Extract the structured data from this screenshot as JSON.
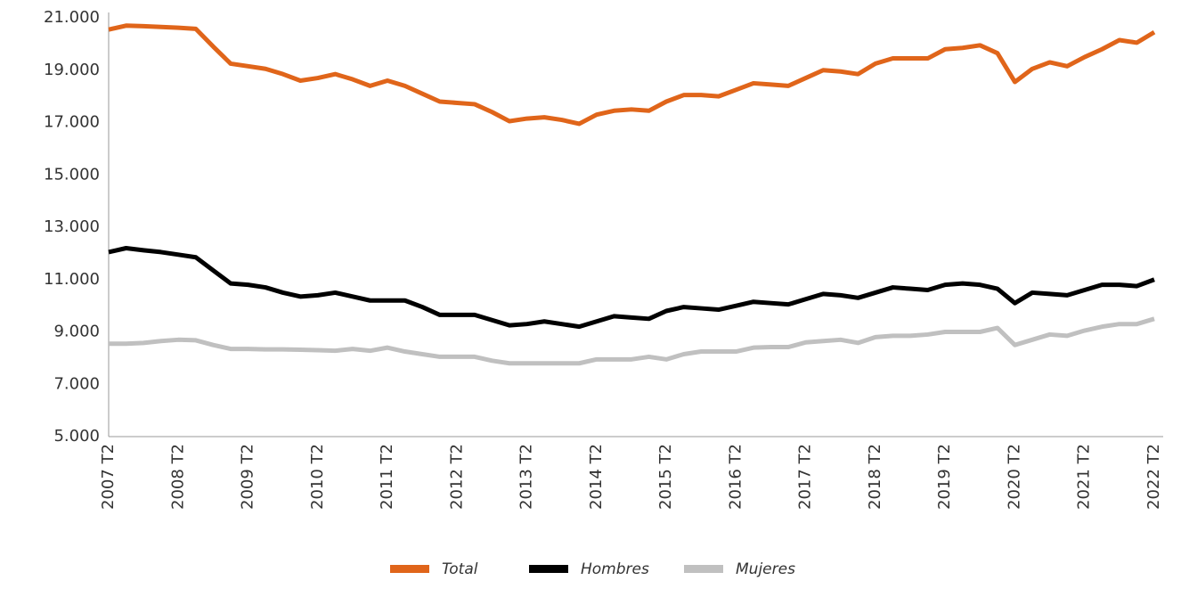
{
  "chart_data": {
    "type": "line",
    "categories": [
      "2007 T2",
      null,
      null,
      null,
      "2008 T2",
      null,
      null,
      null,
      "2009 T2",
      null,
      null,
      null,
      "2010 T2",
      null,
      null,
      null,
      "2011 T2",
      null,
      null,
      null,
      "2012 T2",
      null,
      null,
      null,
      "2013 T2",
      null,
      null,
      null,
      "2014 T2",
      null,
      null,
      null,
      "2015 T2",
      null,
      null,
      null,
      "2016 T2",
      null,
      null,
      null,
      "2017 T2",
      null,
      null,
      null,
      "2018 T2",
      null,
      null,
      null,
      "2019 T2",
      null,
      null,
      null,
      "2020 T2",
      null,
      null,
      null,
      "2021 T2",
      null,
      null,
      null,
      "2022 T2"
    ],
    "series": [
      {
        "name": "Total",
        "color": "#e0651a",
        "values": [
          20550,
          20700,
          20680,
          20650,
          20620,
          20580,
          19900,
          19250,
          19150,
          19050,
          18850,
          18600,
          18700,
          18850,
          18650,
          18400,
          18600,
          18400,
          18100,
          17800,
          17750,
          17700,
          17400,
          17050,
          17150,
          17200,
          17100,
          16950,
          17300,
          17450,
          17500,
          17450,
          17800,
          18050,
          18050,
          18000,
          18250,
          18500,
          18450,
          18400,
          18700,
          19000,
          18950,
          18850,
          19250,
          19450,
          19450,
          19450,
          19800,
          19850,
          19950,
          19650,
          18550,
          19050,
          19300,
          19150,
          19500,
          19800,
          20150,
          20050,
          20450
        ]
      },
      {
        "name": "Hombres",
        "color": "#000000",
        "values": [
          12050,
          12200,
          12120,
          12050,
          11950,
          11850,
          11350,
          10850,
          10800,
          10700,
          10500,
          10350,
          10400,
          10500,
          10350,
          10200,
          10200,
          10200,
          9950,
          9650,
          9650,
          9650,
          9450,
          9250,
          9300,
          9400,
          9300,
          9200,
          9400,
          9600,
          9550,
          9500,
          9800,
          9950,
          9900,
          9850,
          10000,
          10150,
          10100,
          10050,
          10250,
          10450,
          10400,
          10300,
          10500,
          10700,
          10650,
          10600,
          10800,
          10850,
          10800,
          10650,
          10100,
          10500,
          10450,
          10400,
          10600,
          10800,
          10800,
          10750,
          11000
        ]
      },
      {
        "name": "Mujeres",
        "color": "#c0c0c0",
        "values": [
          8550,
          8550,
          8580,
          8650,
          8700,
          8680,
          8500,
          8350,
          8350,
          8330,
          8330,
          8320,
          8300,
          8280,
          8350,
          8280,
          8400,
          8250,
          8150,
          8050,
          8050,
          8050,
          7900,
          7800,
          7800,
          7800,
          7800,
          7800,
          7950,
          7950,
          7950,
          8050,
          7950,
          8150,
          8250,
          8250,
          8250,
          8400,
          8420,
          8420,
          8600,
          8650,
          8700,
          8580,
          8800,
          8850,
          8850,
          8900,
          9000,
          9000,
          9000,
          9150,
          8500,
          8700,
          8900,
          8850,
          9050,
          9200,
          9300,
          9300,
          9500
        ]
      }
    ],
    "ylim": [
      5000,
      21000
    ],
    "yticks": [
      {
        "value": 5000,
        "label": "5.000"
      },
      {
        "value": 7000,
        "label": "7.000"
      },
      {
        "value": 9000,
        "label": "9.000"
      },
      {
        "value": 11000,
        "label": "11.000"
      },
      {
        "value": 13000,
        "label": "13.000"
      },
      {
        "value": 15000,
        "label": "15.000"
      },
      {
        "value": 17000,
        "label": "17.000"
      },
      {
        "value": 19000,
        "label": "19.000"
      },
      {
        "value": 21000,
        "label": "21.000"
      }
    ],
    "grid": false,
    "legend": "bottom"
  }
}
